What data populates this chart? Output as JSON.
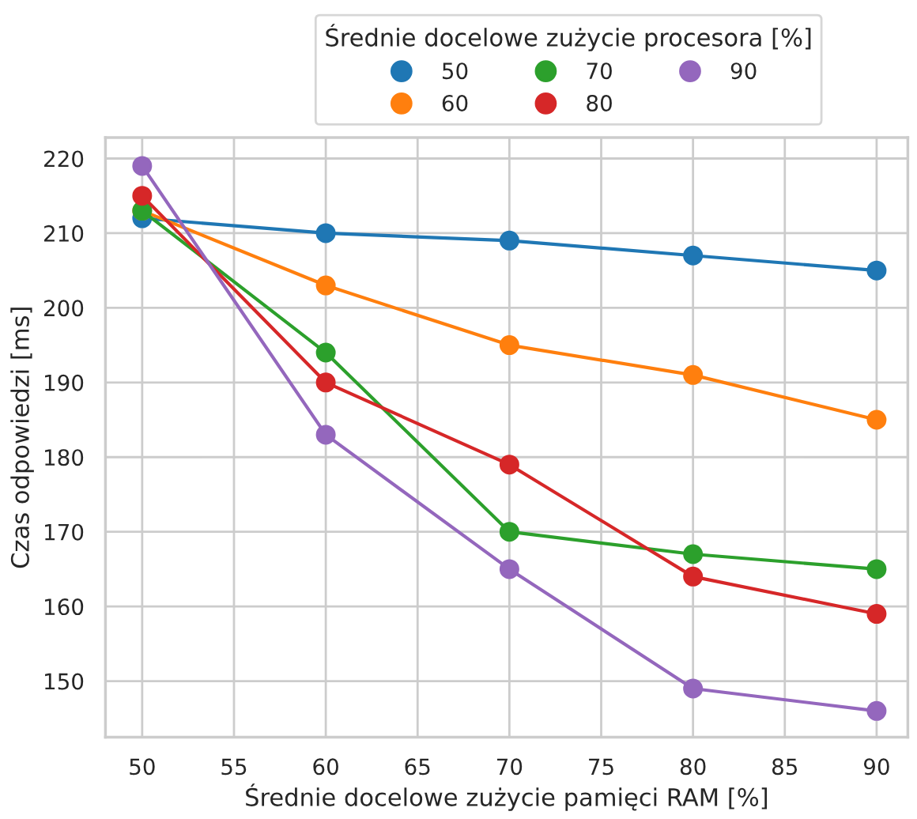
{
  "chart_data": {
    "type": "line",
    "xlabel": "Średnie docelowe zużycie pamięci RAM [%]",
    "ylabel": "Czas odpowiedzi [ms]",
    "legend_title": "Średnie docelowe zużycie procesora [%]",
    "x": [
      50,
      60,
      70,
      80,
      90
    ],
    "series": [
      {
        "name": "50",
        "color": "#1f77b4",
        "values": [
          212,
          210,
          209,
          207,
          205
        ]
      },
      {
        "name": "60",
        "color": "#ff7f0e",
        "values": [
          213,
          203,
          195,
          191,
          185
        ]
      },
      {
        "name": "70",
        "color": "#2ca02c",
        "values": [
          213,
          194,
          170,
          167,
          165
        ]
      },
      {
        "name": "80",
        "color": "#d62728",
        "values": [
          215,
          190,
          179,
          164,
          159
        ]
      },
      {
        "name": "90",
        "color": "#9467bd",
        "values": [
          219,
          183,
          165,
          149,
          146
        ]
      }
    ],
    "xlim": [
      48,
      91.7
    ],
    "xticks": [
      50,
      55,
      60,
      65,
      70,
      75,
      80,
      85,
      90
    ],
    "ylim": [
      142.5,
      222.8
    ],
    "yticks": [
      150,
      160,
      170,
      180,
      190,
      200,
      210,
      220
    ],
    "grid": true,
    "legend": "top",
    "marker": "circle",
    "line_style": "solid"
  }
}
